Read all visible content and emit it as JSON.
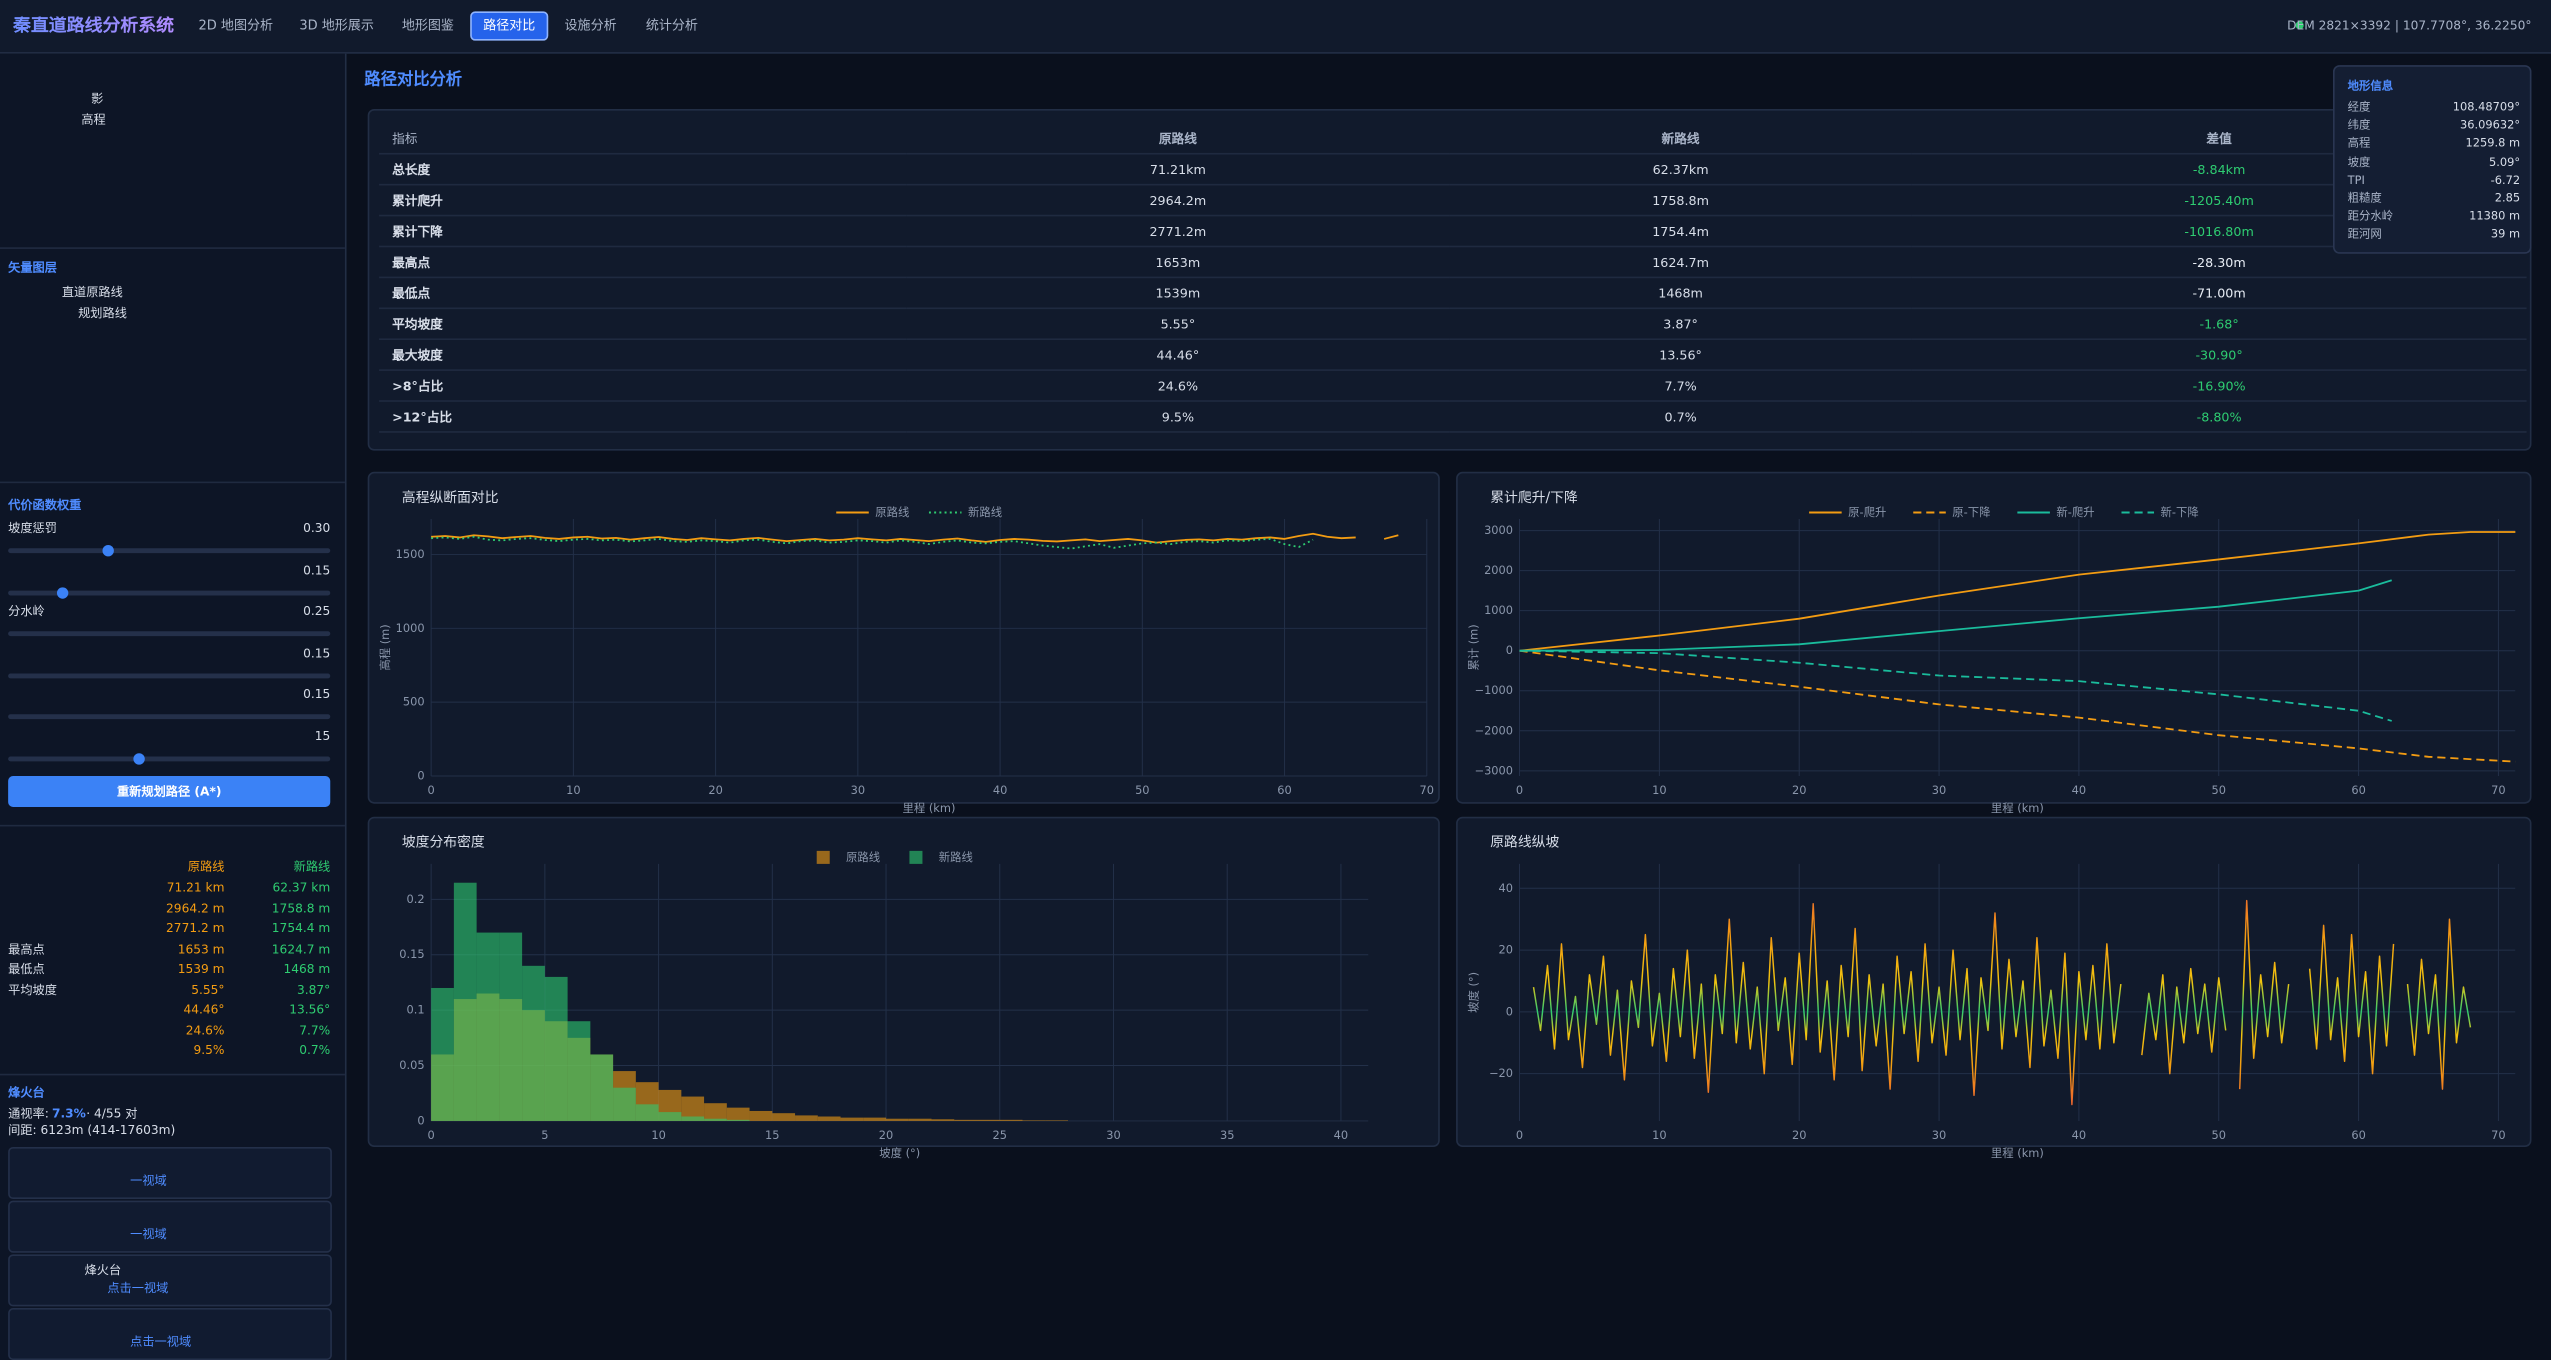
{
  "header": {
    "title": "秦直道路线分析系统",
    "tabs": [
      {
        "label": "2D 地图分析",
        "active": false
      },
      {
        "label": "3D 地形展示",
        "active": false
      },
      {
        "label": "地形图鉴",
        "active": false
      },
      {
        "label": "路径对比",
        "active": true
      },
      {
        "label": "设施分析",
        "active": false
      },
      {
        "label": "统计分析",
        "active": false
      }
    ],
    "status": "DEM 2821×3392 | 107.7708°, 36.2250°"
  },
  "sidebar": {
    "layers": [
      "影",
      "高程"
    ],
    "vector_heading": "矢量图层",
    "vector_layers": [
      "直道原路线",
      "规划路线"
    ],
    "weights_heading": "代价函数权重",
    "weights": [
      {
        "label": "坡度惩罚",
        "value": "0.30"
      },
      {
        "value": "0.15"
      },
      {
        "label": "分水岭",
        "value": "0.25"
      },
      {
        "value": "0.15"
      },
      {
        "value": "0.15"
      },
      {
        "value": "15"
      }
    ],
    "replan_button": "重新规划路径 (A*)",
    "summary": {
      "headers": [
        "原路线",
        "新路线"
      ],
      "rows": [
        {
          "cells": [
            "71.21 km",
            "62.37 km"
          ]
        },
        {
          "cells": [
            "2964.2 m",
            "1758.8 m"
          ]
        },
        {
          "cells": [
            "2771.2 m",
            "1754.4 m"
          ]
        },
        {
          "label": "最高点",
          "cells": [
            "1653 m",
            "1624.7 m"
          ]
        },
        {
          "label": "最低点",
          "cells": [
            "1539 m",
            "1468 m"
          ]
        },
        {
          "label": "平均坡度",
          "cells": [
            "5.55°",
            "3.87°"
          ]
        },
        {
          "cells": [
            "44.46°",
            "13.56°"
          ]
        },
        {
          "cells": [
            "24.6%",
            "7.7%"
          ]
        },
        {
          "cells": [
            "9.5%",
            "0.7%"
          ]
        }
      ]
    },
    "beacon": {
      "heading": "烽火台",
      "visibility_label": "通视率:",
      "visibility_rate": "7.3%",
      "visibility_pairs": "· 4/55 对",
      "spacing": "间距: 6123m (414-17603m)"
    },
    "cards": [
      {
        "link": "一视域"
      },
      {
        "link": "一视域"
      },
      {
        "title": "烽火台",
        "link": "点击一视域"
      },
      {
        "link": "点击一视域"
      }
    ]
  },
  "page_title": "路径对比分析",
  "table": {
    "header": [
      "指标",
      "原路线",
      "新路线",
      "差值"
    ],
    "rows": [
      {
        "cells": [
          "总长度",
          "71.21km",
          "62.37km",
          "-8.84km"
        ],
        "improved": true
      },
      {
        "cells": [
          "累计爬升",
          "2964.2m",
          "1758.8m",
          "-1205.40m"
        ],
        "improved": true
      },
      {
        "cells": [
          "累计下降",
          "2771.2m",
          "1754.4m",
          "-1016.80m"
        ],
        "improved": true
      },
      {
        "cells": [
          "最高点",
          "1653m",
          "1624.7m",
          "-28.30m"
        ],
        "improved": false
      },
      {
        "cells": [
          "最低点",
          "1539m",
          "1468m",
          "-71.00m"
        ],
        "improved": false
      },
      {
        "cells": [
          "平均坡度",
          "5.55°",
          "3.87°",
          "-1.68°"
        ],
        "improved": true
      },
      {
        "cells": [
          "最大坡度",
          "44.46°",
          "13.56°",
          "-30.90°"
        ],
        "improved": true
      },
      {
        "cells": [
          ">8°占比",
          "24.6%",
          "7.7%",
          "-16.90%"
        ],
        "improved": true
      },
      {
        "cells": [
          ">12°占比",
          "9.5%",
          "0.7%",
          "-8.80%"
        ],
        "improved": true
      }
    ]
  },
  "terrain_info": {
    "title": "地形信息",
    "rows": [
      [
        "经度",
        "108.48709°"
      ],
      [
        "纬度",
        "36.09632°"
      ],
      [
        "高程",
        "1259.8 m"
      ],
      [
        "坡度",
        "5.09°"
      ],
      [
        "TPI",
        "-6.72"
      ],
      [
        "粗糙度",
        "2.85"
      ],
      [
        "距分水岭",
        "11380 m"
      ],
      [
        "距河网",
        "39 m"
      ]
    ]
  },
  "chart_data": [
    {
      "type": "line",
      "title": "高程纵断面对比",
      "xlabel": "里程 (km)",
      "ylabel": "高程 (m)",
      "xlim": [
        0,
        70
      ],
      "ylim": [
        0,
        1740
      ],
      "xticks": [
        0,
        10,
        20,
        30,
        40,
        50,
        60,
        70
      ],
      "yticks": [
        0,
        500,
        1000,
        1500
      ],
      "grid": true,
      "legend": "top",
      "series": [
        {
          "name": "原路线",
          "color": "#f39c12",
          "dash": "solid",
          "x": [
            0,
            1,
            2,
            3,
            4,
            5,
            6,
            7,
            8,
            9,
            10,
            11,
            12,
            13,
            14,
            15,
            16,
            17,
            18,
            19,
            20,
            21,
            22,
            23,
            24,
            25,
            26,
            27,
            28,
            29,
            30,
            31,
            32,
            33,
            34,
            35,
            36,
            37,
            38,
            39,
            40,
            41,
            42,
            43,
            44,
            45,
            46,
            47,
            48,
            49,
            50,
            51,
            52,
            53,
            54,
            55,
            56,
            57,
            58,
            59,
            60,
            61,
            62,
            63,
            64,
            65,
            66,
            67,
            68
          ],
          "values": [
            1620,
            1625,
            1615,
            1630,
            1622,
            1610,
            1618,
            1625,
            1612,
            1605,
            1615,
            1620,
            1608,
            1612,
            1600,
            1610,
            1618,
            1605,
            1598,
            1610,
            1602,
            1595,
            1605,
            1612,
            1600,
            1590,
            1598,
            1605,
            1595,
            1600,
            1610,
            1602,
            1595,
            1605,
            1598,
            1590,
            1600,
            1608,
            1595,
            1585,
            1598,
            1605,
            1600,
            1592,
            1588,
            1595,
            1602,
            1590,
            1598,
            1605,
            1595,
            1580,
            1590,
            1598,
            1602,
            1595,
            1605,
            1600,
            1610,
            1615,
            1605,
            1625,
            1640,
            1620,
            1610,
            1615,
            null,
            1605,
            1630
          ]
        },
        {
          "name": "新路线",
          "color": "#2ecc71",
          "dash": "dot",
          "x": [
            0,
            1,
            2,
            3,
            4,
            5,
            6,
            7,
            8,
            9,
            10,
            11,
            12,
            13,
            14,
            15,
            16,
            17,
            18,
            19,
            20,
            21,
            22,
            23,
            24,
            25,
            26,
            27,
            28,
            29,
            30,
            31,
            32,
            33,
            34,
            35,
            36,
            37,
            38,
            39,
            40,
            41,
            42,
            43,
            44,
            45,
            46,
            47,
            48,
            49,
            50,
            51,
            52,
            53,
            54,
            55,
            56,
            57,
            58,
            59,
            60,
            61,
            62
          ],
          "values": [
            1610,
            1615,
            1605,
            1620,
            1600,
            1595,
            1605,
            1610,
            1598,
            1590,
            1600,
            1605,
            1595,
            1600,
            1588,
            1595,
            1605,
            1590,
            1585,
            1595,
            1590,
            1580,
            1595,
            1600,
            1585,
            1575,
            1590,
            1595,
            1580,
            1585,
            1595,
            1590,
            1580,
            1595,
            1585,
            1570,
            1585,
            1595,
            1580,
            1575,
            1585,
            1590,
            1575,
            1560,
            1550,
            1540,
            1555,
            1570,
            1545,
            1560,
            1575,
            1580,
            1570,
            1585,
            1590,
            1580,
            1595,
            1590,
            1600,
            1605,
            1570,
            1550,
            1600
          ]
        }
      ]
    },
    {
      "type": "line",
      "title": "累计爬升/下降",
      "xlabel": "里程 (km)",
      "ylabel": "累计 (m)",
      "xlim": [
        0,
        71.2
      ],
      "ylim": [
        -3130,
        3290
      ],
      "xticks": [
        0,
        10,
        20,
        30,
        40,
        50,
        60,
        70
      ],
      "yticks": [
        {
          "value": -3000,
          "label": "−3000"
        },
        {
          "value": -2000,
          "label": "−2000"
        },
        {
          "value": -1000,
          "label": "−1000"
        },
        0,
        1000,
        2000,
        3000
      ],
      "grid": true,
      "legend": "top",
      "series": [
        {
          "name": "原-爬升",
          "color": "#f39c12",
          "dash": "solid",
          "x": [
            0,
            10,
            20,
            30,
            40,
            50,
            60,
            65,
            68,
            71.21
          ],
          "values": [
            0,
            380,
            800,
            1380,
            1900,
            2280,
            2680,
            2900,
            2964,
            2964
          ]
        },
        {
          "name": "原-下降",
          "color": "#f39c12",
          "dash": "dash",
          "x": [
            0,
            10,
            20,
            30,
            40,
            50,
            60,
            65,
            71.21
          ],
          "values": [
            0,
            -490,
            -900,
            -1340,
            -1670,
            -2110,
            -2440,
            -2650,
            -2771
          ]
        },
        {
          "name": "新-爬升",
          "color": "#1abc9c",
          "dash": "solid",
          "x": [
            0,
            10,
            20,
            30,
            40,
            50,
            60,
            62.37
          ],
          "values": [
            0,
            20,
            160,
            490,
            810,
            1100,
            1500,
            1759
          ]
        },
        {
          "name": "新-下降",
          "color": "#1abc9c",
          "dash": "dash",
          "x": [
            0,
            10,
            20,
            30,
            40,
            50,
            60,
            62.37
          ],
          "values": [
            0,
            -60,
            -300,
            -620,
            -760,
            -1090,
            -1500,
            -1754
          ]
        }
      ]
    },
    {
      "type": "histogram",
      "title": "坡度分布密度",
      "xlabel": "坡度 (°)",
      "xlim": [
        0,
        41.2
      ],
      "ylim": [
        0,
        0.232
      ],
      "xticks": [
        0,
        5,
        10,
        15,
        20,
        25,
        30,
        35,
        40
      ],
      "yticks": [
        0,
        0.05,
        0.1,
        0.15,
        0.2
      ],
      "grid": true,
      "legend": "top",
      "opacity": 0.6,
      "series": [
        {
          "name": "原路线",
          "color": "#f39c12",
          "bins": [
            0,
            1,
            2,
            3,
            4,
            5,
            6,
            7,
            8,
            9,
            10,
            11,
            12,
            13,
            14,
            15,
            16,
            17,
            18,
            19,
            20,
            21,
            22,
            23,
            24,
            25,
            26,
            27,
            28
          ],
          "values": [
            0.06,
            0.11,
            0.115,
            0.11,
            0.1,
            0.09,
            0.075,
            0.06,
            0.045,
            0.035,
            0.028,
            0.022,
            0.016,
            0.012,
            0.009,
            0.007,
            0.005,
            0.004,
            0.003,
            0.003,
            0.002,
            0.002,
            0.0015,
            0.001,
            0.001,
            0.001,
            0.0005,
            0.0005
          ]
        },
        {
          "name": "新路线",
          "color": "#2ecc71",
          "bins": [
            0,
            1,
            2,
            3,
            4,
            5,
            6,
            7,
            8,
            9,
            10,
            11,
            12,
            13,
            14
          ],
          "values": [
            0.12,
            0.215,
            0.17,
            0.17,
            0.14,
            0.13,
            0.09,
            0.06,
            0.03,
            0.015,
            0.008,
            0.004,
            0.002,
            0.001
          ]
        }
      ]
    },
    {
      "type": "line",
      "title": "原路线纵坡",
      "xlabel": "里程 (km)",
      "ylabel": "坡度 (°)",
      "xlim": [
        0,
        71.2
      ],
      "ylim": [
        -35.3,
        47.9
      ],
      "xticks": [
        0,
        10,
        20,
        30,
        40,
        50,
        60,
        70
      ],
      "yticks": [
        {
          "value": -20,
          "label": "−20"
        },
        0,
        20,
        40
      ],
      "grid": true,
      "colorscale": [
        "#2ecc71",
        "#f1c40f",
        "#f39c12",
        "#e74c3c"
      ],
      "x": [
        1,
        1.5,
        2,
        2.5,
        3,
        3.5,
        4,
        4.5,
        5,
        5.5,
        6,
        6.5,
        7,
        7.5,
        8,
        8.5,
        9,
        9.5,
        10,
        10.5,
        11,
        11.5,
        12,
        12.5,
        13,
        13.5,
        14,
        14.5,
        15,
        15.5,
        16,
        16.5,
        17,
        17.5,
        18,
        18.5,
        19,
        19.5,
        20,
        20.5,
        21,
        21.5,
        22,
        22.5,
        23,
        23.5,
        24,
        24.5,
        25,
        25.5,
        26,
        26.5,
        27,
        27.5,
        28,
        28.5,
        29,
        29.5,
        30,
        30.5,
        31,
        31.5,
        32,
        32.5,
        33,
        33.5,
        34,
        34.5,
        35,
        35.5,
        36,
        36.5,
        37,
        37.5,
        38,
        38.5,
        39,
        39.5,
        40,
        40.5,
        41,
        41.5,
        42,
        42.5,
        43,
        43.5,
        44,
        44.5,
        45,
        45.5,
        46,
        46.5,
        47,
        47.5,
        48,
        48.5,
        49,
        49.5,
        50,
        50.5,
        51,
        51.5,
        52,
        52.5,
        53,
        53.5,
        54,
        54.5,
        55,
        55.5,
        56,
        56.5,
        57,
        57.5,
        58,
        58.5,
        59,
        59.5,
        60,
        60.5,
        61,
        61.5,
        62,
        62.5,
        63,
        63.5,
        64,
        64.5,
        65,
        65.5,
        66,
        66.5,
        67,
        67.5,
        68
      ],
      "values": [
        8,
        -6,
        15,
        -12,
        22,
        -9,
        5,
        -18,
        12,
        -4,
        18,
        -14,
        7,
        -22,
        10,
        -5,
        25,
        -11,
        6,
        -16,
        14,
        -8,
        20,
        -15,
        9,
        -26,
        12,
        -7,
        30,
        -10,
        16,
        -12,
        8,
        -20,
        24,
        -6,
        11,
        -17,
        19,
        -9,
        35,
        -13,
        10,
        -22,
        15,
        -8,
        27,
        -19,
        12,
        -11,
        9,
        -25,
        18,
        -7,
        13,
        -16,
        22,
        -10,
        8,
        -14,
        20,
        -9,
        14,
        -27,
        11,
        -6,
        32,
        -12,
        17,
        -8,
        10,
        -18,
        24,
        -11,
        7,
        -15,
        19,
        -30,
        13,
        -9,
        15,
        -12,
        22,
        -10,
        9,
        null,
        null,
        -14,
        6,
        -9,
        12,
        -20,
        8,
        -10,
        14,
        -7,
        9,
        -13,
        11,
        -6,
        null,
        -25,
        36,
        -15,
        12,
        -8,
        16,
        -10,
        9,
        null,
        null,
        14,
        -12,
        28,
        -9,
        11,
        -16,
        25,
        -8,
        13,
        -20,
        18,
        -11,
        22,
        null,
        9,
        -14,
        17,
        -7,
        12,
        -25,
        30,
        -10,
        8,
        -5
      ]
    }
  ]
}
